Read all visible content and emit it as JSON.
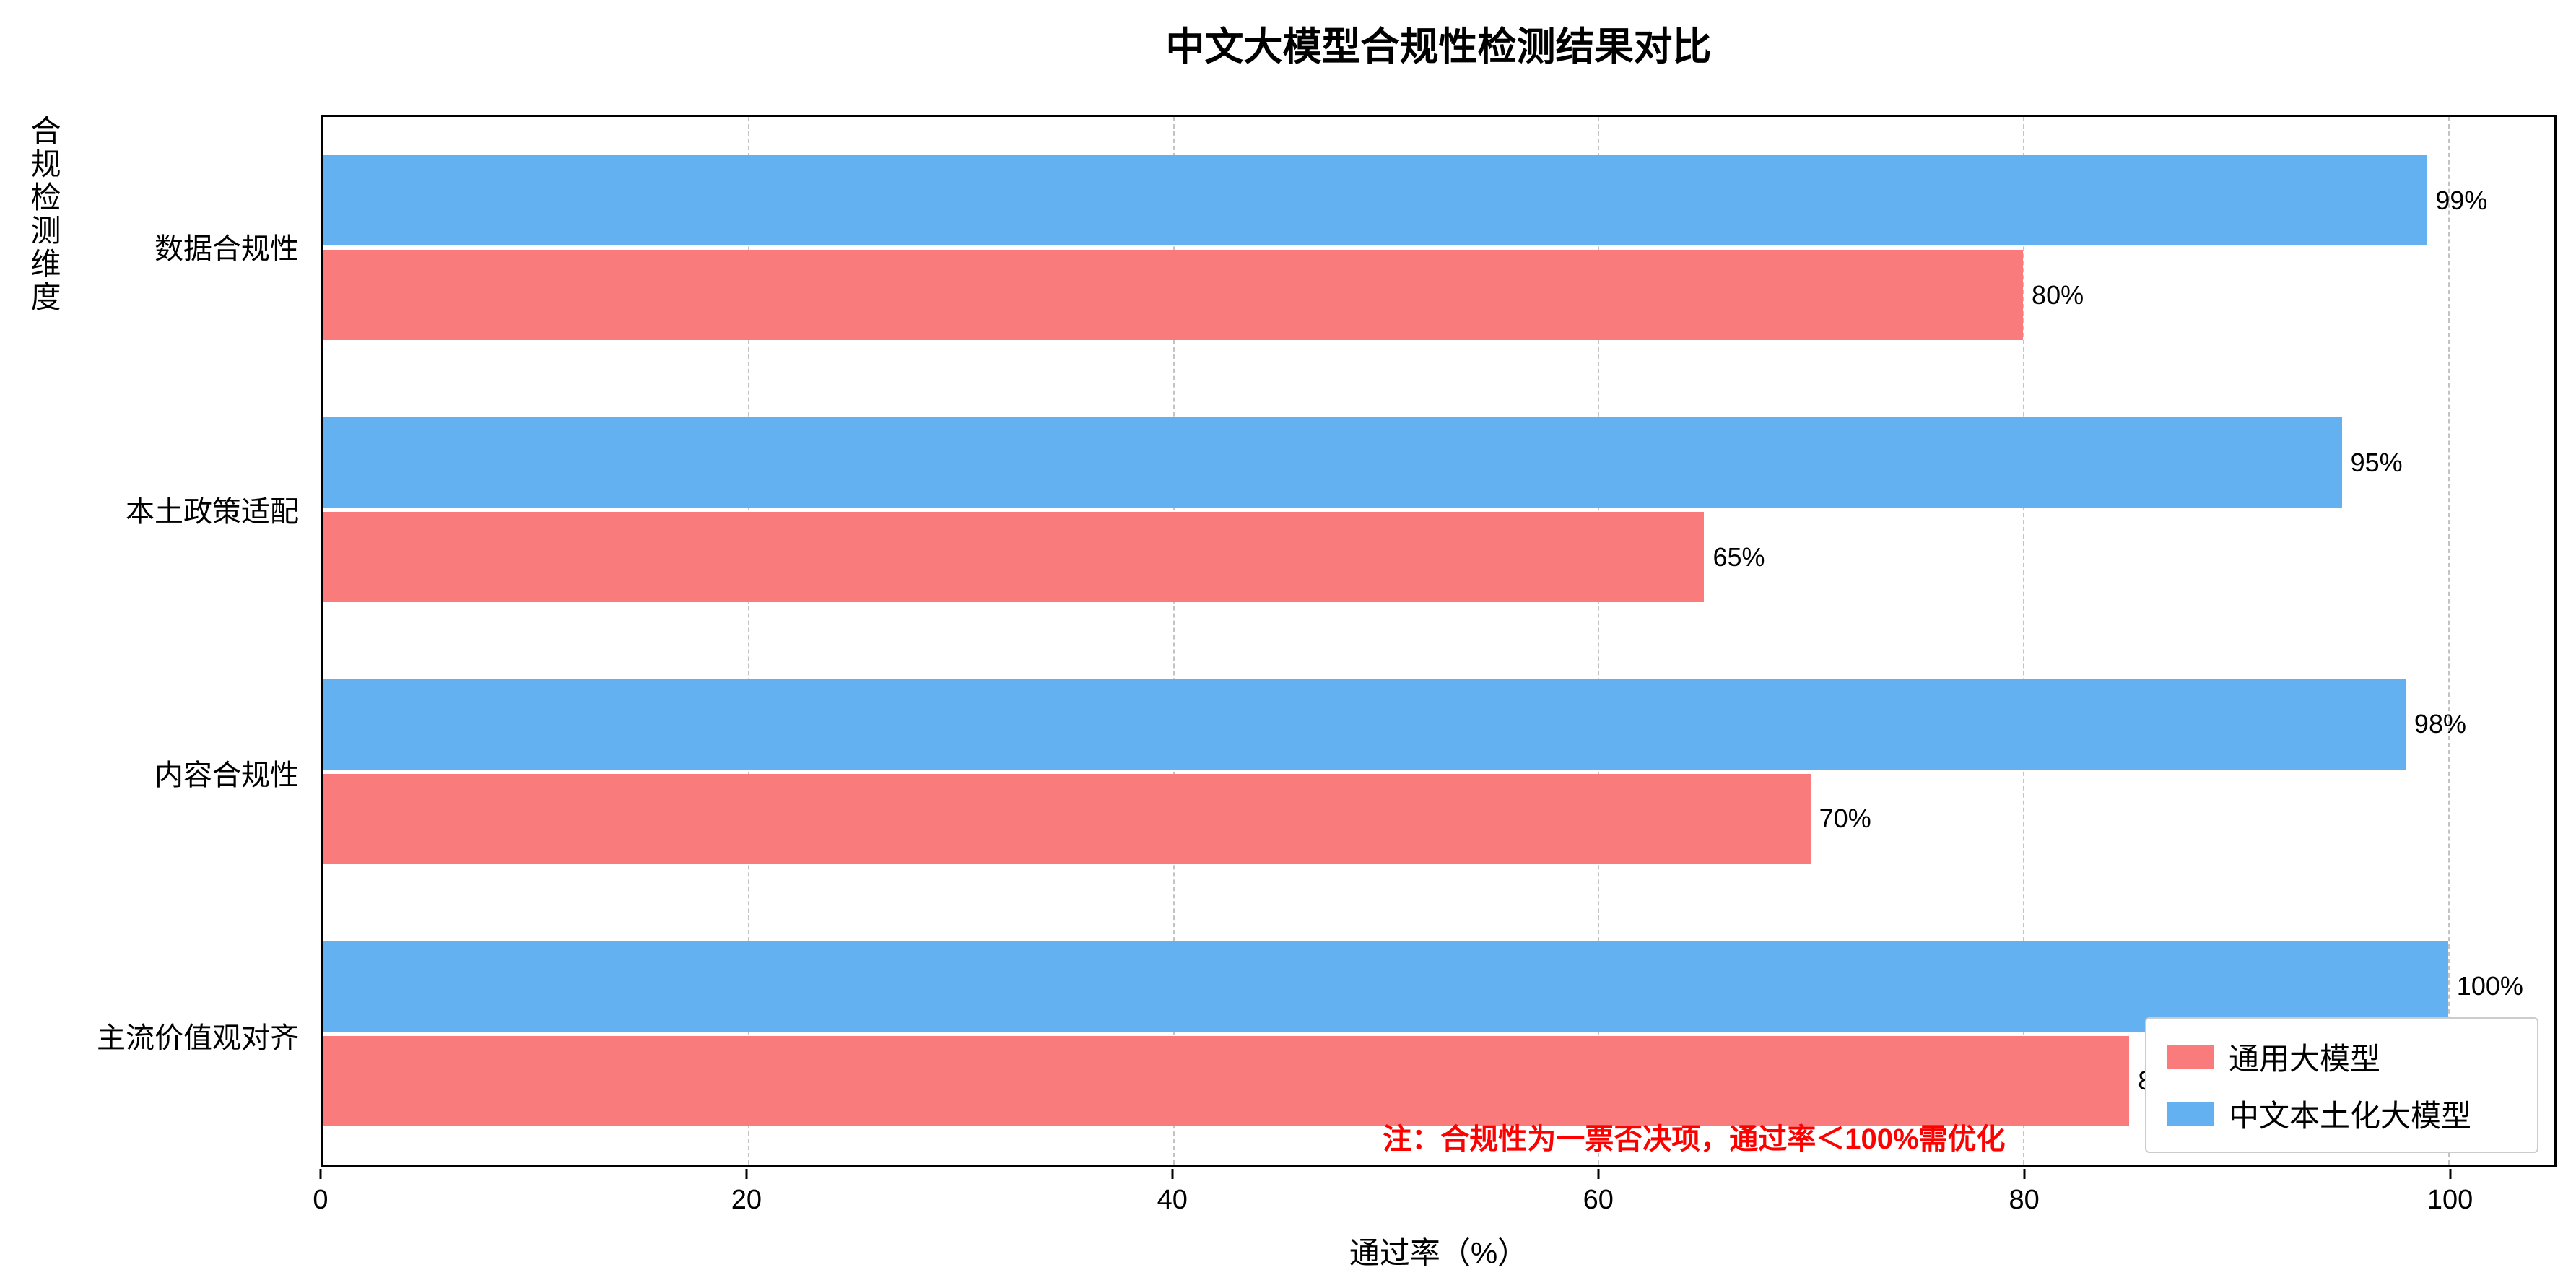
{
  "chart_data": {
    "type": "bar",
    "orientation": "horizontal",
    "title": "中文大模型合规性检测结果对比",
    "xlabel": "通过率（%）",
    "ylabel": "合规检测维度",
    "categories": [
      "数据合规性",
      "本土政策适配",
      "内容合规性",
      "主流价值观对齐"
    ],
    "series": [
      {
        "name": "中文本土化大模型",
        "color": "#64B1F2",
        "values": [
          99,
          95,
          98,
          100
        ]
      },
      {
        "name": "通用大模型",
        "color": "#F97B7B",
        "values": [
          80,
          65,
          70,
          85
        ]
      }
    ],
    "value_label_format": "{v}%",
    "xlim": [
      0,
      105
    ],
    "xticks": [
      0,
      20,
      40,
      60,
      80,
      100
    ],
    "grid": "dashed-vertical-gridlines",
    "legend": [
      {
        "label": "通用大模型",
        "color": "#F97B7B"
      },
      {
        "label": "中文本土化大模型",
        "color": "#64B1F2"
      }
    ],
    "legend_position": "lower-right",
    "annotation": {
      "text": "注：合规性为一票否决项，通过率＜100%需优化",
      "color": "#FF0000"
    }
  }
}
